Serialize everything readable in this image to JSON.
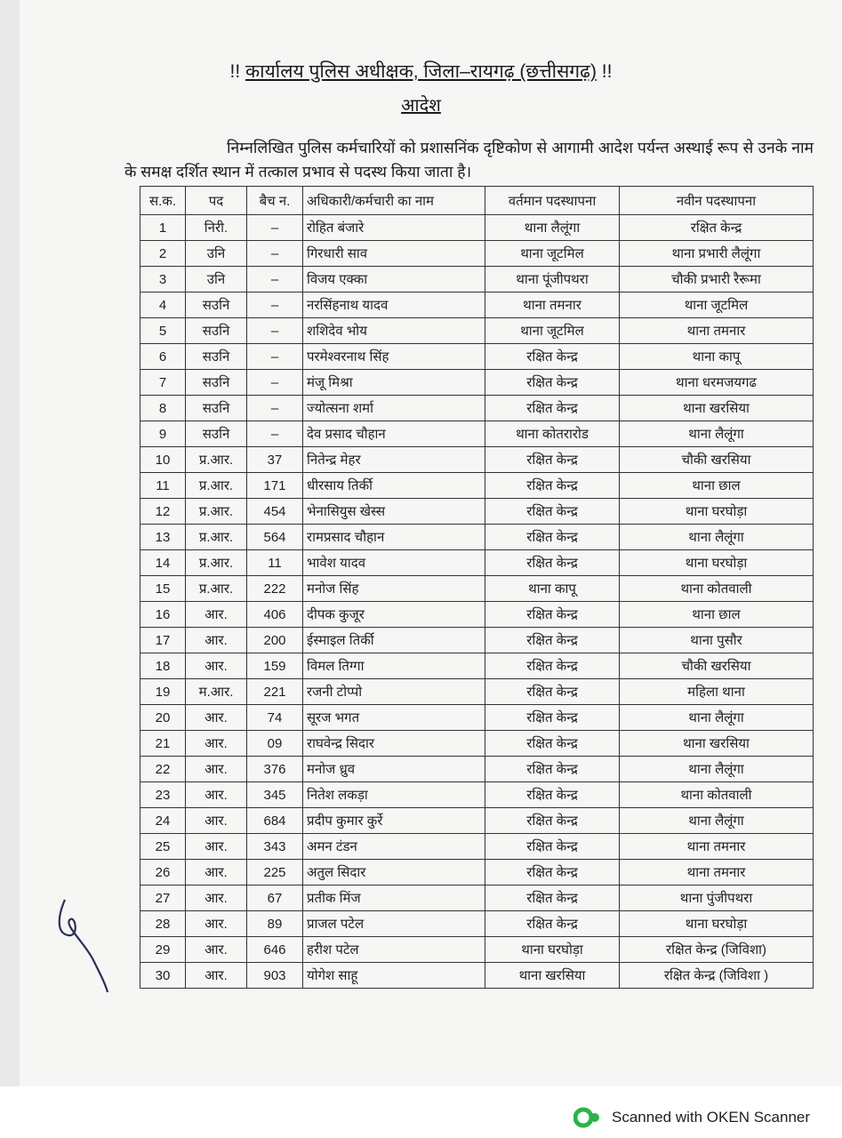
{
  "header": {
    "title_prefix": "!!",
    "title": "कार्यालय पुलिस अधीक्षक, जिला–रायगढ़ (छत्तीसगढ़)",
    "title_suffix": "!!",
    "subtitle": "आदेश",
    "paragraph": "निम्नलिखित पुलिस कर्मचारियों को प्रशासनिंक दृष्टिकोण से आगामी आदेश पर्यन्त अस्थाई रूप से उनके नाम के समक्ष दर्शित स्थान में तत्काल प्रभाव से पदस्थ किया जाता है।"
  },
  "table": {
    "columns": [
      "स.क.",
      "पद",
      "बैच न.",
      "अधिकारी/कर्मचारी का नाम",
      "वर्तमान पदस्थापना",
      "नवीन पदस्थापना"
    ],
    "rows": [
      [
        "1",
        "निरी.",
        "–",
        "रोहित बंजारे",
        "थाना लैलूंगा",
        "रक्षित केन्द्र"
      ],
      [
        "2",
        "उनि",
        "–",
        "गिरधारी साव",
        "थाना जूटमिल",
        "थाना प्रभारी लैलूंगा"
      ],
      [
        "3",
        "उनि",
        "–",
        "विजय एक्का",
        "थाना पूंजीपथरा",
        "चौकी प्रभारी रैरूमा"
      ],
      [
        "4",
        "सउनि",
        "–",
        "नरसिंहनाथ यादव",
        "थाना तमनार",
        "थाना जूटमिल"
      ],
      [
        "5",
        "सउनि",
        "–",
        "शशिदेव भोय",
        "थाना जूटमिल",
        "थाना तमनार"
      ],
      [
        "6",
        "सउनि",
        "–",
        "परमेश्वरनाथ सिंह",
        "रक्षित केन्द्र",
        "थाना कापू"
      ],
      [
        "7",
        "सउनि",
        "–",
        "मंजू मिश्रा",
        "रक्षित केन्द्र",
        "थाना धरमजयगढ"
      ],
      [
        "8",
        "सउनि",
        "–",
        "ज्योत्सना शर्मा",
        "रक्षित केन्द्र",
        "थाना खरसिया"
      ],
      [
        "9",
        "सउनि",
        "–",
        "देव प्रसाद चौहान",
        "थाना कोतरारोड",
        "थाना लैलूंगा"
      ],
      [
        "10",
        "प्र.आर.",
        "37",
        "नितेन्द्र मेहर",
        "रक्षित केन्द्र",
        "चौकी खरसिया"
      ],
      [
        "11",
        "प्र.आर.",
        "171",
        "धीरसाय तिर्की",
        "रक्षित केन्द्र",
        "थाना छाल"
      ],
      [
        "12",
        "प्र.आर.",
        "454",
        "भेनासियुस खेस्स",
        "रक्षित केन्द्र",
        "थाना घरघोड़ा"
      ],
      [
        "13",
        "प्र.आर.",
        "564",
        "रामप्रसाद चौहान",
        "रक्षित केन्द्र",
        "थाना लैलूंगा"
      ],
      [
        "14",
        "प्र.आर.",
        "11",
        "भावेश यादव",
        "रक्षित केन्द्र",
        "थाना घरघोड़ा"
      ],
      [
        "15",
        "प्र.आर.",
        "222",
        "मनोज सिंह",
        "थाना कापू",
        "थाना कोतवाली"
      ],
      [
        "16",
        "आर.",
        "406",
        "दीपक कुजूर",
        "रक्षित केन्द्र",
        "थाना छाल"
      ],
      [
        "17",
        "आर.",
        "200",
        "ईस्माइल तिर्की",
        "रक्षित केन्द्र",
        "थाना पुसौर"
      ],
      [
        "18",
        "आर.",
        "159",
        "विमल तिग्गा",
        "रक्षित केन्द्र",
        "चौकी खरसिया"
      ],
      [
        "19",
        "म.आर.",
        "221",
        "रजनी टोप्पो",
        "रक्षित केन्द्र",
        "महिला थाना"
      ],
      [
        "20",
        "आर.",
        "74",
        "सूरज भगत",
        "रक्षित केन्द्र",
        "थाना लैलूंगा"
      ],
      [
        "21",
        "आर.",
        "09",
        "राघवेन्द्र सिदार",
        "रक्षित केन्द्र",
        "थाना खरसिया"
      ],
      [
        "22",
        "आर.",
        "376",
        "मनोज ध्रुव",
        "रक्षित केन्द्र",
        "थाना लैलूंगा"
      ],
      [
        "23",
        "आर.",
        "345",
        "नितेश लकड़ा",
        "रक्षित केन्द्र",
        "थाना कोतवाली"
      ],
      [
        "24",
        "आर.",
        "684",
        "प्रदीप कुमार कुर्रे",
        "रक्षित केन्द्र",
        "थाना लैलूंगा"
      ],
      [
        "25",
        "आर.",
        "343",
        "अमन टंडन",
        "रक्षित केन्द्र",
        "थाना तमनार"
      ],
      [
        "26",
        "आर.",
        "225",
        "अतुल सिदार",
        "रक्षित केन्द्र",
        "थाना तमनार"
      ],
      [
        "27",
        "आर.",
        "67",
        "प्रतीक मिंज",
        "रक्षित केन्द्र",
        "थाना पुंजीपथरा"
      ],
      [
        "28",
        "आर.",
        "89",
        "प्राजल पटेल",
        "रक्षित केन्द्र",
        "थाना घरघोड़ा"
      ],
      [
        "29",
        "आर.",
        "646",
        "हरीश पटेल",
        "थाना घरघोड़ा",
        "रक्षित केन्द्र (जिविशा)"
      ],
      [
        "30",
        "आर.",
        "903",
        "योगेश साहू",
        "थाना खरसिया",
        "रक्षित केन्द्र (जिविशा )"
      ]
    ]
  },
  "footer": {
    "scanner_text": "Scanned with OKEN Scanner",
    "logo_color": "#2bb34a"
  }
}
